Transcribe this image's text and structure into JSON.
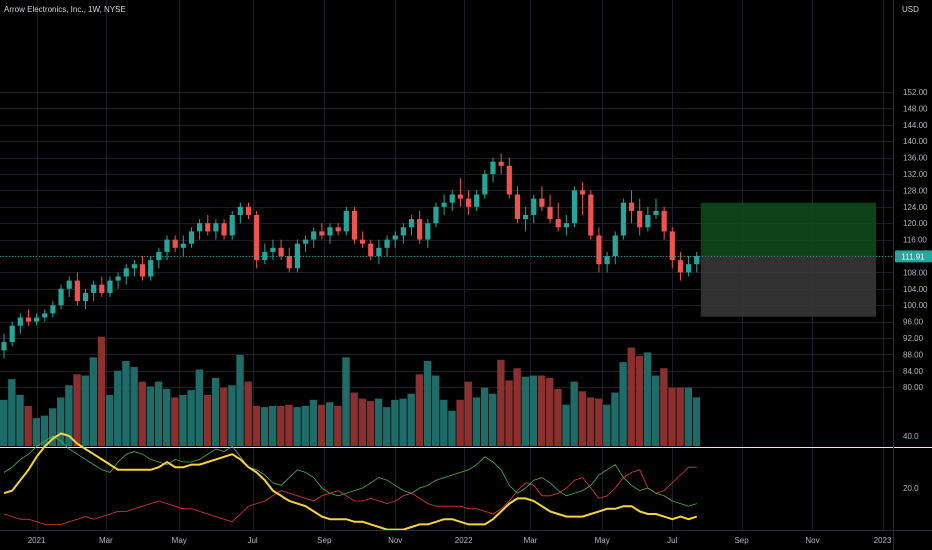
{
  "chart_title": "Arrow Electronics, Inc., 1W, NYSE",
  "currency": "USD",
  "last_price": "111.91",
  "colors": {
    "up": "#26a69a",
    "down": "#ef5350",
    "volume_up": "#1f6b68",
    "volume_down": "#8b2f2f",
    "profit_zone": "#0e4d1a",
    "loss_zone": "#3a3a3a",
    "price_badge": "#26a69a",
    "separator": "#ffe9a3",
    "osc_main": "#f5d33a",
    "osc_pos": "#4caf50",
    "osc_neg": "#e53935"
  },
  "chart_data": {
    "type": "candlestick",
    "price_axis_labels": [
      "152.00",
      "148.00",
      "144.00",
      "140.00",
      "136.00",
      "132.00",
      "128.00",
      "124.00",
      "120.00",
      "116.00",
      "112.00",
      "108.00",
      "104.00",
      "100.00",
      "96.00",
      "92.00",
      "88.00",
      "84.00",
      "80.00"
    ],
    "indicator_axis_labels": [
      "40.0",
      "20.0"
    ],
    "x_tick_labels": [
      "2021",
      "Mar",
      "May",
      "Jul",
      "Sep",
      "Nov",
      "2022",
      "Mar",
      "May",
      "Jul",
      "Sep",
      "Nov",
      "2023"
    ],
    "ohlc": [
      [
        89,
        93,
        87,
        91
      ],
      [
        91,
        96,
        90,
        95
      ],
      [
        95,
        98,
        93,
        97
      ],
      [
        97,
        99,
        95,
        96
      ],
      [
        96,
        98,
        95,
        97
      ],
      [
        97,
        99,
        96,
        98
      ],
      [
        98,
        101,
        97,
        100
      ],
      [
        100,
        105,
        99,
        104
      ],
      [
        104,
        107,
        102,
        106
      ],
      [
        106,
        108,
        100,
        101
      ],
      [
        101,
        104,
        99,
        103
      ],
      [
        103,
        106,
        101,
        105
      ],
      [
        105,
        107,
        102,
        103
      ],
      [
        103,
        107,
        102,
        106
      ],
      [
        106,
        108,
        104,
        107
      ],
      [
        107,
        110,
        105,
        109
      ],
      [
        109,
        111,
        107,
        110
      ],
      [
        110,
        112,
        106,
        107
      ],
      [
        107,
        112,
        106,
        111
      ],
      [
        111,
        114,
        109,
        113
      ],
      [
        113,
        117,
        111,
        116
      ],
      [
        116,
        117,
        113,
        114
      ],
      [
        114,
        117,
        112,
        115
      ],
      [
        115,
        119,
        114,
        118
      ],
      [
        118,
        121,
        116,
        120
      ],
      [
        120,
        122,
        117,
        118
      ],
      [
        118,
        121,
        116,
        120
      ],
      [
        120,
        121,
        116,
        117
      ],
      [
        117,
        123,
        116,
        122
      ],
      [
        122,
        125,
        120,
        124
      ],
      [
        124,
        125,
        121,
        122
      ],
      [
        122,
        123,
        109,
        111
      ],
      [
        111,
        115,
        110,
        113
      ],
      [
        113,
        116,
        111,
        114
      ],
      [
        114,
        116,
        111,
        112
      ],
      [
        112,
        114,
        108,
        109
      ],
      [
        109,
        116,
        108,
        115
      ],
      [
        115,
        117,
        113,
        116
      ],
      [
        116,
        119,
        114,
        118
      ],
      [
        118,
        120,
        116,
        117
      ],
      [
        117,
        120,
        115,
        119
      ],
      [
        119,
        120,
        117,
        118
      ],
      [
        118,
        124,
        117,
        123
      ],
      [
        123,
        124,
        115,
        116
      ],
      [
        116,
        118,
        114,
        115
      ],
      [
        115,
        116,
        111,
        112
      ],
      [
        112,
        116,
        110,
        114
      ],
      [
        114,
        117,
        112,
        116
      ],
      [
        116,
        118,
        114,
        117
      ],
      [
        117,
        120,
        115,
        119
      ],
      [
        119,
        122,
        117,
        121
      ],
      [
        121,
        123,
        115,
        116
      ],
      [
        116,
        121,
        114,
        120
      ],
      [
        120,
        125,
        119,
        124
      ],
      [
        124,
        127,
        122,
        125
      ],
      [
        125,
        128,
        123,
        127
      ],
      [
        127,
        131,
        124,
        126
      ],
      [
        126,
        128,
        122,
        124
      ],
      [
        124,
        128,
        123,
        127
      ],
      [
        127,
        133,
        126,
        132
      ],
      [
        132,
        136,
        130,
        135
      ],
      [
        135,
        137,
        132,
        134
      ],
      [
        134,
        136,
        126,
        127
      ],
      [
        127,
        129,
        120,
        121
      ],
      [
        121,
        124,
        118,
        122
      ],
      [
        122,
        127,
        120,
        126
      ],
      [
        126,
        129,
        123,
        124
      ],
      [
        124,
        127,
        120,
        121
      ],
      [
        121,
        125,
        118,
        119
      ],
      [
        119,
        122,
        117,
        120
      ],
      [
        120,
        129,
        119,
        128
      ],
      [
        128,
        130,
        122,
        127
      ],
      [
        127,
        128,
        116,
        117
      ],
      [
        117,
        119,
        108,
        110
      ],
      [
        110,
        113,
        108,
        112
      ],
      [
        112,
        118,
        110,
        117
      ],
      [
        117,
        126,
        116,
        125
      ],
      [
        125,
        128,
        120,
        123
      ],
      [
        123,
        126,
        117,
        119
      ],
      [
        119,
        124,
        118,
        122
      ],
      [
        122,
        126,
        121,
        123
      ],
      [
        123,
        124,
        116,
        118
      ],
      [
        118,
        119,
        109,
        111
      ],
      [
        111,
        113,
        106,
        108
      ],
      [
        108,
        112,
        107,
        110
      ],
      [
        110,
        113,
        108,
        112
      ]
    ],
    "volume": [
      38,
      55,
      42,
      33,
      23,
      25,
      31,
      40,
      50,
      59,
      58,
      73,
      90,
      42,
      62,
      70,
      65,
      53,
      49,
      53,
      47,
      40,
      42,
      46,
      63,
      42,
      56,
      48,
      50,
      75,
      53,
      33,
      32,
      33,
      33,
      34,
      32,
      33,
      38,
      34,
      36,
      33,
      73,
      44,
      39,
      37,
      39,
      32,
      38,
      39,
      43,
      59,
      70,
      58,
      38,
      29,
      38,
      53,
      40,
      48,
      43,
      71,
      54,
      64,
      57,
      58,
      58,
      56,
      47,
      34,
      53,
      45,
      40,
      39,
      34,
      44,
      69,
      81,
      74,
      77,
      58,
      64,
      48,
      48,
      48,
      40
    ],
    "oscillator": {
      "main": [
        18,
        19,
        23,
        27,
        32,
        36,
        39,
        41,
        40,
        37,
        35,
        33,
        31,
        29,
        27,
        27,
        27,
        27,
        27,
        28,
        30,
        28,
        28,
        29,
        29,
        30,
        31,
        32,
        33,
        31,
        28,
        26,
        23,
        19,
        17,
        15,
        14,
        13,
        11,
        9,
        8,
        8,
        8,
        7,
        7,
        6,
        5,
        4,
        4,
        4,
        5,
        6,
        6,
        7,
        8,
        8,
        7,
        6,
        6,
        6,
        8,
        11,
        14,
        16,
        16,
        15,
        13,
        11,
        10,
        9,
        9,
        9,
        10,
        11,
        12,
        12,
        13,
        13,
        11,
        10,
        10,
        9,
        8,
        9,
        8,
        9
      ],
      "plus": [
        26,
        28,
        31,
        33,
        36,
        38,
        40,
        38,
        35,
        33,
        31,
        29,
        27,
        26,
        30,
        33,
        34,
        33,
        31,
        30,
        29,
        31,
        30,
        30,
        31,
        33,
        35,
        34,
        36,
        32,
        28,
        27,
        25,
        22,
        21,
        24,
        27,
        26,
        24,
        20,
        18,
        17,
        18,
        19,
        20,
        22,
        24,
        23,
        21,
        19,
        18,
        20,
        21,
        23,
        24,
        25,
        26,
        27,
        29,
        32,
        30,
        27,
        21,
        18,
        20,
        23,
        24,
        22,
        19,
        17,
        18,
        19,
        21,
        25,
        27,
        29,
        24,
        21,
        19,
        20,
        18,
        17,
        15,
        14,
        13,
        14
      ],
      "minus": [
        10,
        9,
        8,
        8,
        7,
        6,
        6,
        6,
        7,
        8,
        9,
        8,
        9,
        10,
        11,
        11,
        12,
        13,
        14,
        15,
        14,
        13,
        12,
        12,
        11,
        10,
        9,
        8,
        7,
        10,
        13,
        14,
        15,
        17,
        19,
        18,
        17,
        16,
        15,
        17,
        18,
        19,
        17,
        15,
        15,
        16,
        15,
        14,
        15,
        17,
        18,
        16,
        14,
        13,
        13,
        13,
        13,
        12,
        12,
        11,
        10,
        12,
        15,
        19,
        22,
        21,
        17,
        17,
        18,
        20,
        23,
        24,
        20,
        16,
        17,
        20,
        24,
        26,
        27,
        20,
        18,
        19,
        22,
        25,
        28,
        28
      ]
    },
    "position_box": {
      "entry": 111.91,
      "target": 125,
      "stop": 97.2,
      "end_index": 107
    },
    "last_price": 111.91,
    "osc_ylim": [
      0,
      50
    ],
    "ylim": [
      77,
      158
    ]
  }
}
